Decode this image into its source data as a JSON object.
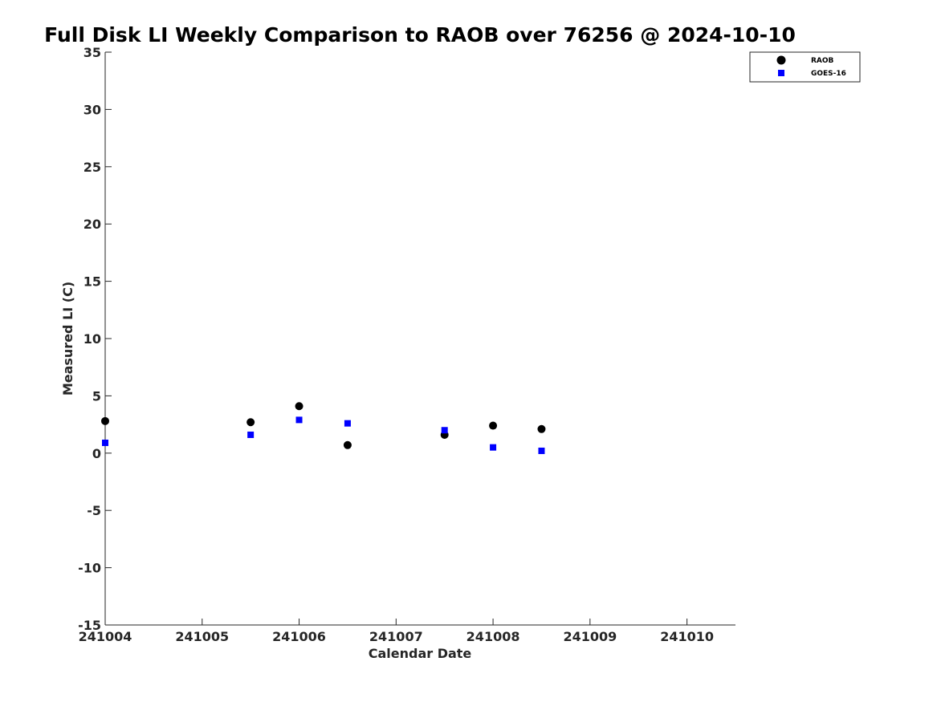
{
  "chart_data": {
    "type": "scatter",
    "title": "Full Disk LI Weekly Comparison to RAOB over 76256 @ 2024-10-10",
    "xlabel": "Calendar Date",
    "ylabel": "Measured LI (C)",
    "xlim": [
      241004,
      241010.5
    ],
    "ylim": [
      -15,
      35
    ],
    "x_ticks": [
      241004,
      241005,
      241006,
      241007,
      241008,
      241009,
      241010
    ],
    "x_tick_labels": [
      "241004",
      "241005",
      "241006",
      "241007",
      "241008",
      "241009",
      "241010"
    ],
    "y_ticks": [
      35,
      30,
      25,
      20,
      15,
      10,
      5,
      0,
      -5,
      -10,
      -15
    ],
    "y_tick_labels": [
      "35",
      "30",
      "25",
      "20",
      "15",
      "10",
      "5",
      "0",
      "-5",
      "-10",
      "-15"
    ],
    "grid": false,
    "legend_position": "top-right",
    "series": [
      {
        "name": "RAOB",
        "marker": "circle",
        "color": "#000000",
        "x": [
          241004,
          241005.5,
          241006,
          241006.5,
          241007.5,
          241008,
          241008.5
        ],
        "y": [
          2.8,
          2.7,
          4.1,
          0.7,
          1.6,
          2.4,
          2.1
        ]
      },
      {
        "name": "GOES-16",
        "marker": "square",
        "color": "#0000ff",
        "x": [
          241004,
          241005.5,
          241006,
          241006.5,
          241007.5,
          241008,
          241008.5
        ],
        "y": [
          0.9,
          1.6,
          2.9,
          2.6,
          2.0,
          0.5,
          0.2
        ]
      }
    ]
  }
}
